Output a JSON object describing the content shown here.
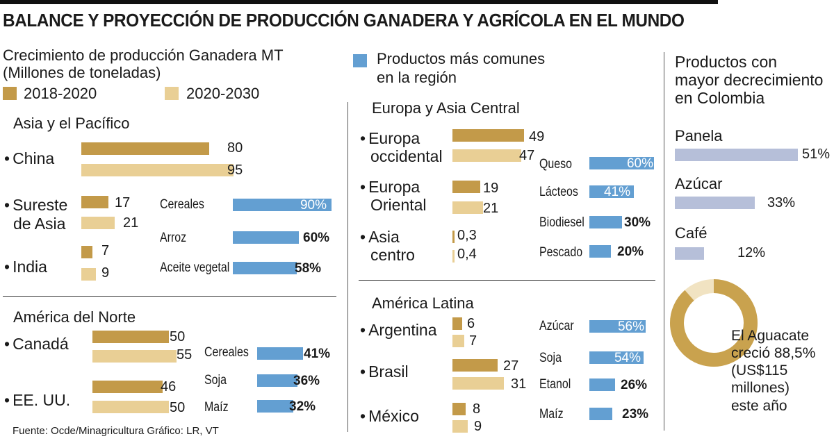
{
  "title": "BALANCE Y PROYECCIÓN DE PRODUCCIÓN GANADERA Y AGRÍCOLA EN EL MUNDO",
  "subtitle_line1": "Crecimiento de producción Ganadera MT",
  "subtitle_line2": "(Millones de toneladas)",
  "legend": {
    "period1": "2018-2020",
    "period2": "2020-2030",
    "common_line1": "Productos más comunes",
    "common_line2": "en la región"
  },
  "colors": {
    "period1": "#c39a49",
    "period2": "#e9cf95",
    "common": "#639fd2",
    "colombia": "#b6bfd9",
    "avocado": "#c9a24e"
  },
  "source": "Fuente: Ocde/Minagricultura  Gráfico: LR, VT",
  "chart_data": [
    {
      "type": "bar",
      "title": "Asia y el Pacífico",
      "categories": [
        "China",
        "Sureste de Asia",
        "India"
      ],
      "series": [
        {
          "name": "2018-2020",
          "values": [
            80,
            17,
            7
          ]
        },
        {
          "name": "2020-2030",
          "values": [
            95,
            21,
            9
          ]
        }
      ],
      "products": {
        "labels": [
          "Cereales",
          "Arroz",
          "Aceite vegetal"
        ],
        "values": [
          90,
          60,
          58
        ]
      }
    },
    {
      "type": "bar",
      "title": "América del Norte",
      "categories": [
        "Canadá",
        "EE. UU."
      ],
      "series": [
        {
          "name": "2018-2020",
          "values": [
            50,
            46
          ]
        },
        {
          "name": "2020-2030",
          "values": [
            55,
            50
          ]
        }
      ],
      "products": {
        "labels": [
          "Cereales",
          "Soja",
          "Maíz"
        ],
        "values": [
          41,
          36,
          32
        ]
      }
    },
    {
      "type": "bar",
      "title": "Europa y Asia Central",
      "categories": [
        "Europa occidental",
        "Europa Oriental",
        "Asia centro"
      ],
      "series": [
        {
          "name": "2018-2020",
          "values": [
            49,
            19,
            0.3
          ]
        },
        {
          "name": "2020-2030",
          "values": [
            47,
            21,
            0.4
          ]
        }
      ],
      "products": {
        "labels": [
          "Queso",
          "Lácteos",
          "Biodiesel",
          "Pescado"
        ],
        "values": [
          60,
          41,
          30,
          20
        ]
      }
    },
    {
      "type": "bar",
      "title": "América Latina",
      "categories": [
        "Argentina",
        "Brasil",
        "México"
      ],
      "series": [
        {
          "name": "2018-2020",
          "values": [
            6,
            27,
            8
          ]
        },
        {
          "name": "2020-2030",
          "values": [
            7,
            31,
            9
          ]
        }
      ],
      "products": {
        "labels": [
          "Azúcar",
          "Soja",
          "Etanol",
          "Maíz"
        ],
        "values": [
          56,
          54,
          26,
          23
        ]
      }
    },
    {
      "type": "bar",
      "title": "Productos con mayor decrecimiento en Colombia",
      "categories": [
        "Panela",
        "Azúcar",
        "Café"
      ],
      "values": [
        51,
        33,
        12
      ]
    }
  ],
  "text": {
    "asia_l1": "Sureste",
    "asia_l2": "de Asia",
    "eu_l1a": "Europa",
    "eu_l1b": "occidental",
    "eu_l2a": "Europa",
    "eu_l2b": "Oriental",
    "eu_l3a": "Asia",
    "eu_l3b": "centro",
    "asia_v": [
      "80",
      "95",
      "17",
      "21",
      "7",
      "9"
    ],
    "asia_p": [
      "90%",
      "60%",
      "58%"
    ],
    "na_v": [
      "50",
      "55",
      "46",
      "50"
    ],
    "na_p": [
      "41%",
      "36%",
      "32%"
    ],
    "eu_v": [
      "49",
      "47",
      "19",
      "21",
      "0,3",
      "0,4"
    ],
    "eu_p": [
      "60%",
      "41%",
      "30%",
      "20%"
    ],
    "la_v": [
      "6",
      "7",
      "27",
      "31",
      "8",
      "9"
    ],
    "la_p": [
      "56%",
      "54%",
      "26%",
      "23%"
    ],
    "col_p": [
      "51%",
      "33%",
      "12%"
    ],
    "col_h1": "Productos con",
    "col_h2": "mayor decrecimiento",
    "col_h3": "en Colombia",
    "avocado_value": 88.5,
    "avo1": "El Aguacate",
    "avo2": "creció 88,5%",
    "avo3": "(US$115",
    "avo4": "millones)",
    "avo5": "este año"
  }
}
